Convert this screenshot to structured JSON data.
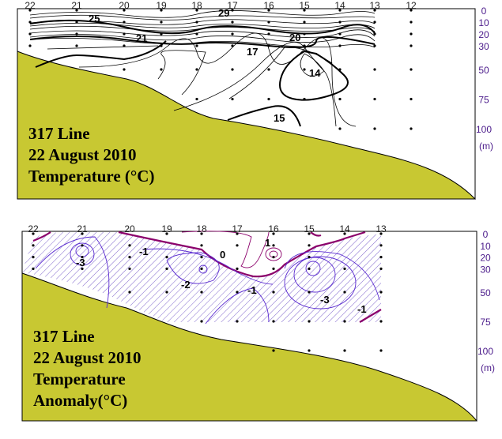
{
  "colors": {
    "terrain": "#c8c832",
    "contour_temp": "#000000",
    "contour_pos": "#8b006b",
    "contour_neg": "#5a2ad0",
    "depth_label": "#4a1a8a"
  },
  "chart_data": [
    {
      "type": "contour",
      "title_lines": [
        "317 Line",
        "22 August 2010",
        "Temperature (°C)"
      ],
      "stations": [
        "22",
        "21",
        "20",
        "19",
        "18",
        "17",
        "16",
        "15",
        "14",
        "13",
        "12"
      ],
      "depth_ticks": [
        "0",
        "10",
        "20",
        "30",
        "50",
        "75",
        "100"
      ],
      "depth_unit": "(m)",
      "contour_labels": [
        "29",
        "25",
        "21",
        "20",
        "17",
        "14",
        "15"
      ],
      "samples": {
        "22": [
          0,
          10,
          20,
          30
        ],
        "21": [
          0,
          10,
          20,
          30
        ],
        "20": [
          0,
          10,
          20,
          30,
          50
        ],
        "19": [
          0,
          10,
          20,
          30,
          50
        ],
        "18": [
          0,
          10,
          20,
          30,
          50,
          75
        ],
        "17": [
          0,
          10,
          20,
          30,
          50,
          75
        ],
        "16": [
          0,
          10,
          20,
          30,
          50,
          75
        ],
        "15": [
          0,
          10,
          20,
          30,
          50,
          75
        ],
        "14": [
          0,
          10,
          20,
          30,
          50,
          75,
          100
        ],
        "13": [
          0,
          10,
          20,
          30,
          50,
          75,
          100
        ],
        "12": [
          0,
          10,
          20,
          30,
          50,
          75,
          100
        ]
      }
    },
    {
      "type": "contour",
      "title_lines": [
        "317 Line",
        "22 August 2010",
        "Temperature",
        "Anomaly(°C)"
      ],
      "stations": [
        "22",
        "21",
        "20",
        "19",
        "18",
        "17",
        "16",
        "15",
        "14",
        "13"
      ],
      "depth_ticks": [
        "0",
        "10",
        "20",
        "30",
        "50",
        "75",
        "100"
      ],
      "depth_unit": "(m)",
      "contour_labels": [
        "-3",
        "-1",
        "0",
        "1",
        "-2",
        "-1",
        "-3",
        "-1"
      ],
      "negative_region": "hatched",
      "samples": {
        "22": [
          0,
          10,
          20,
          30
        ],
        "21": [
          0,
          10,
          20,
          30
        ],
        "20": [
          10,
          20,
          30,
          50
        ],
        "19": [
          0,
          20,
          30,
          50
        ],
        "18": [
          0,
          10,
          20,
          30,
          50,
          75
        ],
        "17": [
          0,
          10,
          30,
          50,
          75
        ],
        "16": [
          0,
          10,
          20,
          30,
          50,
          75,
          100
        ],
        "15": [
          0,
          10,
          20,
          30,
          50,
          75,
          100
        ],
        "14": [
          0,
          30,
          50,
          75,
          100
        ],
        "13": [
          0,
          10,
          20,
          30,
          50,
          75,
          100
        ]
      }
    }
  ]
}
